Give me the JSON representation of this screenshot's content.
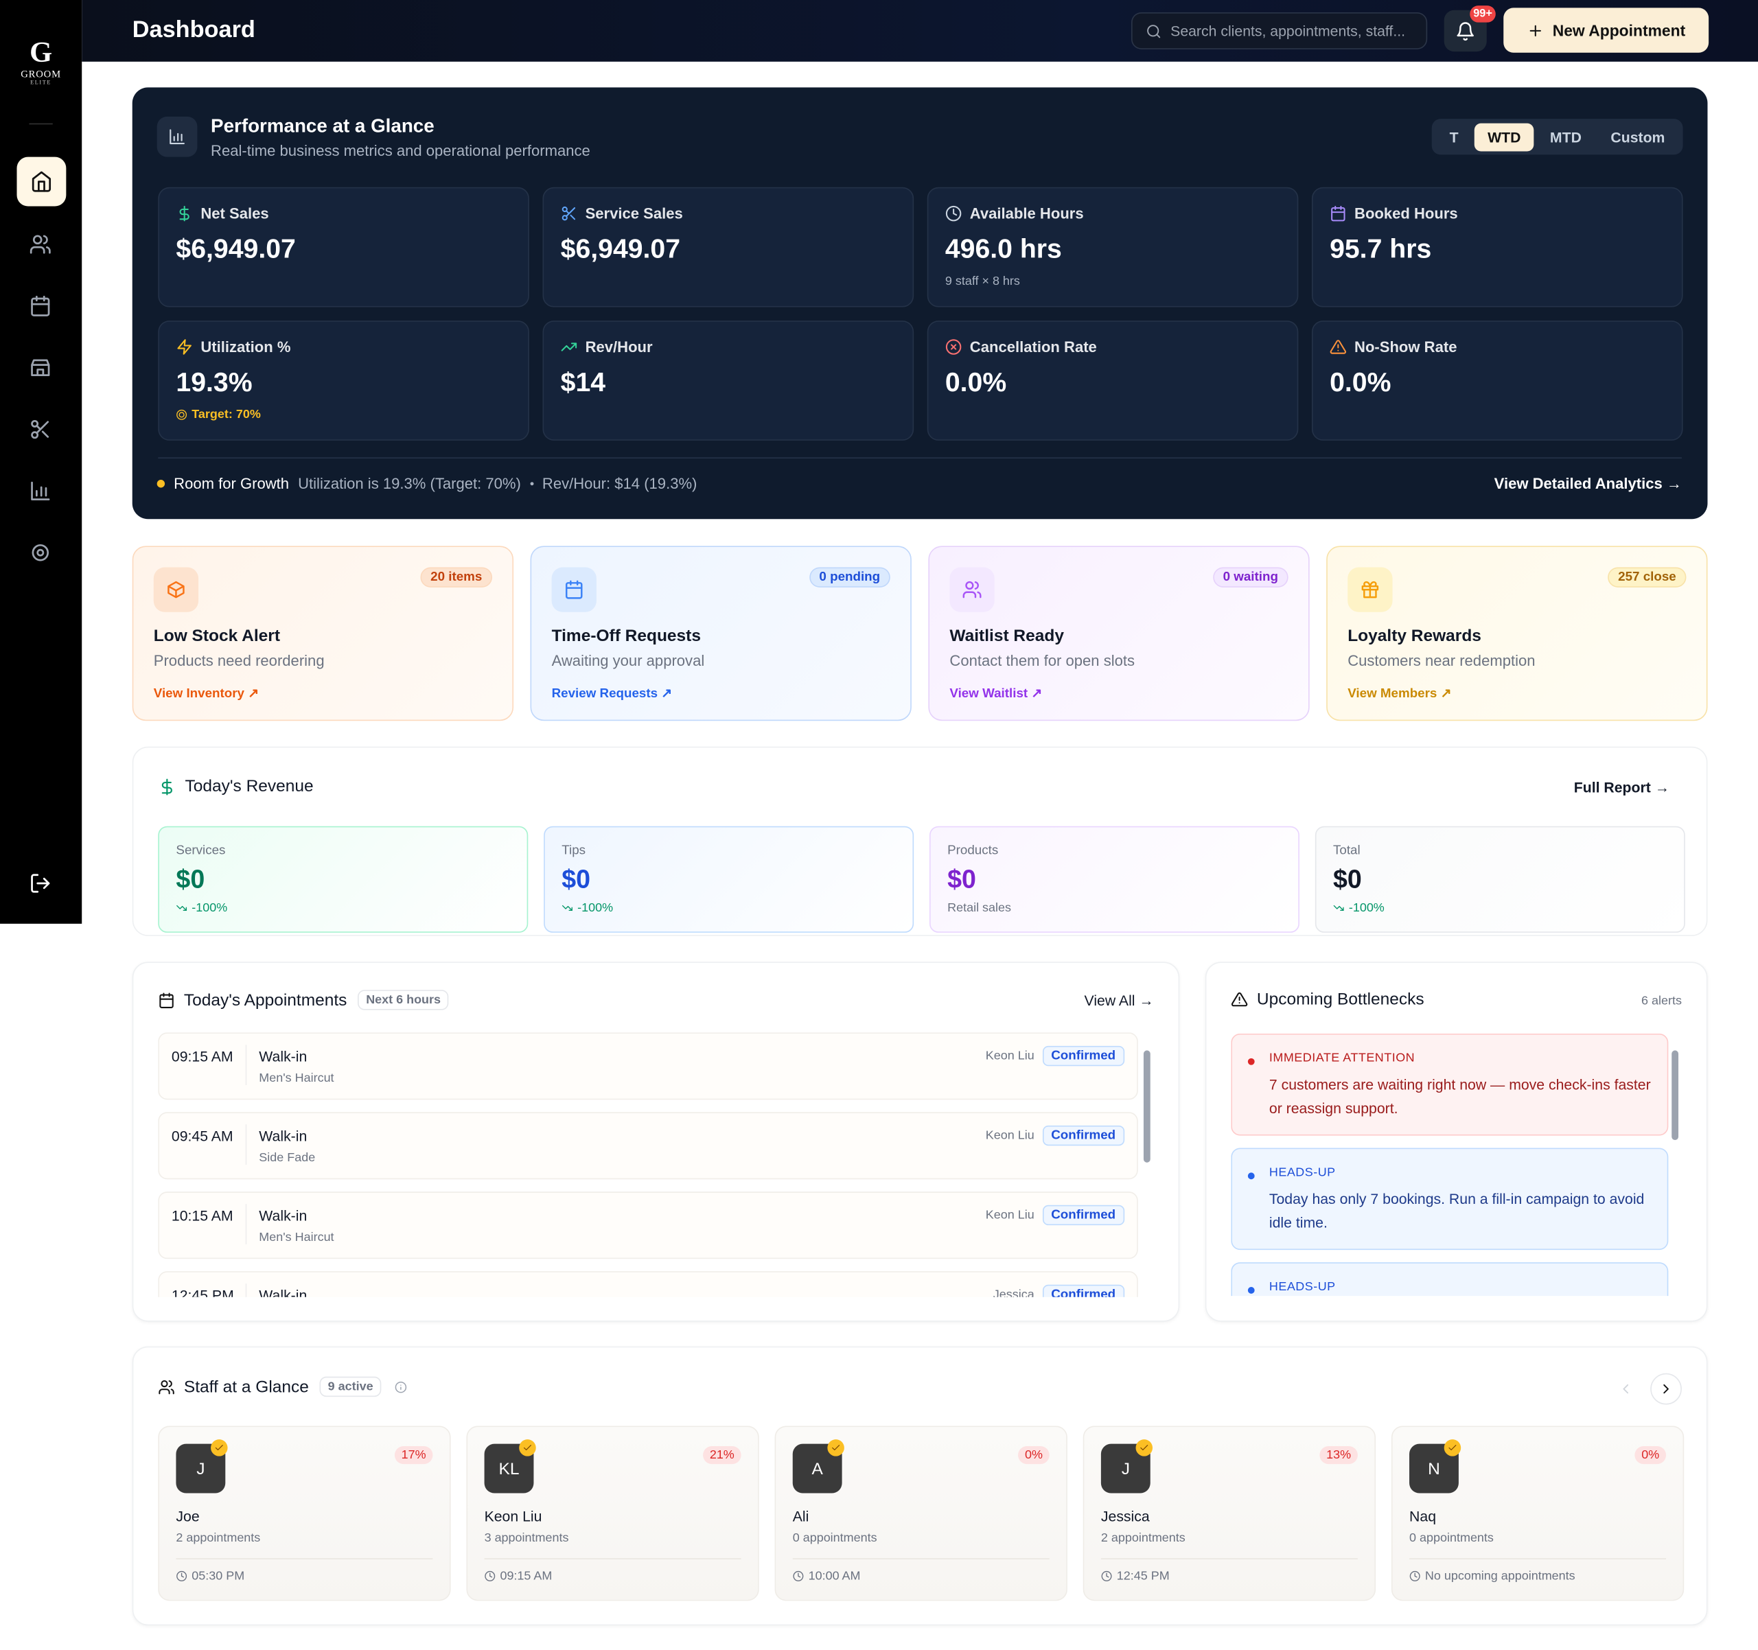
{
  "sidebar": {
    "brand": "GROOM",
    "brand_sub": "ELITE"
  },
  "header": {
    "title": "Dashboard",
    "search_placeholder": "Search clients, appointments, staff...",
    "notification_badge": "99+",
    "new_button": "New Appointment"
  },
  "performance": {
    "title": "Performance at a Glance",
    "subtitle": "Real-time business metrics and operational performance",
    "periods": [
      "T",
      "WTD",
      "MTD",
      "Custom"
    ],
    "active_period": "WTD",
    "metrics": [
      {
        "label": "Net Sales",
        "value": "$6,949.07"
      },
      {
        "label": "Service Sales",
        "value": "$6,949.07"
      },
      {
        "label": "Available Hours",
        "value": "496.0 hrs",
        "note": "9 staff × 8 hrs"
      },
      {
        "label": "Booked Hours",
        "value": "95.7 hrs"
      },
      {
        "label": "Utilization %",
        "value": "19.3%",
        "note": "Target: 70%"
      },
      {
        "label": "Rev/Hour",
        "value": "$14"
      },
      {
        "label": "Cancellation Rate",
        "value": "0.0%"
      },
      {
        "label": "No-Show Rate",
        "value": "0.0%"
      }
    ],
    "footer": {
      "status": "Room for Growth",
      "detail": "Utilization is 19.3% (Target: 70%)",
      "detail2": "Rev/Hour: $14 (19.3%)",
      "link": "View Detailed Analytics →"
    }
  },
  "alerts": [
    {
      "title": "Low Stock Alert",
      "subtitle": "Products need reordering",
      "badge": "20 items",
      "link": "View Inventory ↗"
    },
    {
      "title": "Time-Off Requests",
      "subtitle": "Awaiting your approval",
      "badge": "0 pending",
      "link": "Review Requests ↗"
    },
    {
      "title": "Waitlist Ready",
      "subtitle": "Contact them for open slots",
      "badge": "0 waiting",
      "link": "View Waitlist ↗"
    },
    {
      "title": "Loyalty Rewards",
      "subtitle": "Customers near redemption",
      "badge": "257 close",
      "link": "View Members ↗"
    }
  ],
  "revenue": {
    "title": "Today's Revenue",
    "link": "Full Report →",
    "items": [
      {
        "label": "Services",
        "value": "$0",
        "change": "-100%"
      },
      {
        "label": "Tips",
        "value": "$0",
        "change": "-100%"
      },
      {
        "label": "Products",
        "value": "$0",
        "note": "Retail sales"
      },
      {
        "label": "Total",
        "value": "$0",
        "change": "-100%"
      }
    ]
  },
  "appointments": {
    "title": "Today's Appointments",
    "badge": "Next 6 hours",
    "link": "View All →",
    "items": [
      {
        "time": "09:15 AM",
        "client": "Walk-in",
        "service": "Men's Haircut",
        "staff": "Keon Liu",
        "status": "Confirmed"
      },
      {
        "time": "09:45 AM",
        "client": "Walk-in",
        "service": "Side Fade",
        "staff": "Keon Liu",
        "status": "Confirmed"
      },
      {
        "time": "10:15 AM",
        "client": "Walk-in",
        "service": "Men's Haircut",
        "staff": "Keon Liu",
        "status": "Confirmed"
      },
      {
        "time": "12:45 PM",
        "client": "Walk-in",
        "staff": "Jessica",
        "status": "Confirmed"
      }
    ]
  },
  "bottlenecks": {
    "title": "Upcoming Bottlenecks",
    "count": "6 alerts",
    "items": [
      {
        "level": "IMMEDIATE ATTENTION",
        "text": "7 customers are waiting right now — move check-ins faster or reassign support."
      },
      {
        "level": "HEADS-UP",
        "text": "Today has only 7 bookings. Run a fill-in campaign to avoid idle time."
      },
      {
        "level": "HEADS-UP"
      }
    ]
  },
  "staff": {
    "title": "Staff at a Glance",
    "badge": "9 active",
    "members": [
      {
        "initials": "J",
        "name": "Joe",
        "appointments": "2 appointments",
        "next": "05:30 PM",
        "utilization": "17%"
      },
      {
        "initials": "KL",
        "name": "Keon Liu",
        "appointments": "3 appointments",
        "next": "09:15 AM",
        "utilization": "21%"
      },
      {
        "initials": "A",
        "name": "Ali",
        "appointments": "0 appointments",
        "next": "10:00 AM",
        "utilization": "0%"
      },
      {
        "initials": "J",
        "name": "Jessica",
        "appointments": "2 appointments",
        "next": "12:45 PM",
        "utilization": "13%"
      },
      {
        "initials": "N",
        "name": "Naq",
        "appointments": "0 appointments",
        "next": "No upcoming appointments",
        "utilization": "0%"
      }
    ]
  }
}
